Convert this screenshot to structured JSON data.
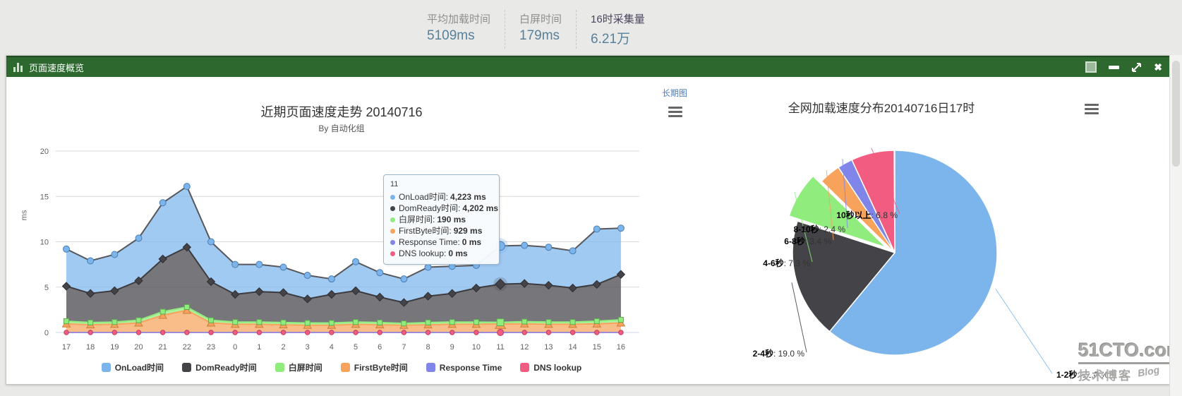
{
  "page": {
    "stats": [
      {
        "label": "平均加载时间",
        "value": "5109ms"
      },
      {
        "label": "白屏时间",
        "value": "179ms"
      },
      {
        "label": "16时采集量",
        "value": "6.21万"
      }
    ]
  },
  "panel": {
    "title": "页面速度概览"
  },
  "trend_chart": {
    "link_label": "长期图",
    "tooltip": {
      "header": "11",
      "rows": [
        {
          "name": "OnLoad时间",
          "value": "4,223 ms"
        },
        {
          "name": "DomReady时间",
          "value": "4,202 ms"
        },
        {
          "name": "白屏时间",
          "value": "190 ms"
        },
        {
          "name": "FirstByte时间",
          "value": "929 ms"
        },
        {
          "name": "Response Time",
          "value": "0 ms"
        },
        {
          "name": "DNS lookup",
          "value": "0 ms"
        }
      ]
    }
  },
  "watermark": {
    "line1": "51CTO.com",
    "line2": "技术博客",
    "line3": "Blog"
  },
  "chart_data": [
    {
      "type": "area",
      "stacked": true,
      "title": "近期页面速度走势 20140716",
      "subtitle": "By 自动化组",
      "ylabel": "ms",
      "ylim": [
        0,
        20
      ],
      "yticks": [
        0,
        5,
        10,
        15,
        20
      ],
      "grid": true,
      "legend_position": "bottom",
      "hovered_index": 18,
      "hovered_category": "11",
      "categories": [
        "17",
        "18",
        "19",
        "20",
        "21",
        "22",
        "23",
        "0",
        "1",
        "2",
        "3",
        "4",
        "5",
        "6",
        "7",
        "8",
        "9",
        "10",
        "11",
        "12",
        "13",
        "14",
        "15",
        "16"
      ],
      "series": [
        {
          "name": "OnLoad时间",
          "color": "#7cb5ec",
          "marker": "circle",
          "values": [
            4.1,
            3.6,
            4.0,
            4.7,
            6.2,
            6.7,
            4.4,
            3.3,
            3.0,
            2.8,
            2.6,
            1.7,
            3.2,
            2.7,
            2.6,
            3.2,
            3.0,
            2.5,
            4.223,
            4.2,
            4.2,
            4.1,
            6.1,
            5.1
          ]
        },
        {
          "name": "DomReady时间",
          "color": "#434348",
          "marker": "diamond",
          "values": [
            3.85,
            3.2,
            3.45,
            4.35,
            5.8,
            6.6,
            4.25,
            3.05,
            3.35,
            3.3,
            2.65,
            3.15,
            3.45,
            2.8,
            2.3,
            2.9,
            3.15,
            3.75,
            4.202,
            4.2,
            4.05,
            3.75,
            4.05,
            5.0
          ]
        },
        {
          "name": "白屏时间",
          "color": "#90ed7d",
          "marker": "square",
          "values": [
            0.3,
            0.25,
            0.25,
            0.3,
            0.4,
            0.35,
            0.3,
            0.25,
            0.25,
            0.25,
            0.25,
            0.25,
            0.25,
            0.25,
            0.2,
            0.25,
            0.25,
            0.25,
            0.19,
            0.25,
            0.25,
            0.25,
            0.3,
            0.35
          ]
        },
        {
          "name": "FirstByte时间",
          "color": "#f7a35c",
          "marker": "triangle",
          "values": [
            0.95,
            0.85,
            0.9,
            1.05,
            1.9,
            2.45,
            1.05,
            0.9,
            0.9,
            0.85,
            0.8,
            0.8,
            0.9,
            0.85,
            0.8,
            0.85,
            0.9,
            0.9,
            0.929,
            0.95,
            0.9,
            0.9,
            0.95,
            1.05
          ]
        },
        {
          "name": "Response Time",
          "color": "#8085e9",
          "marker": "triangle-down",
          "values": [
            0,
            0,
            0,
            0,
            0,
            0,
            0,
            0,
            0,
            0,
            0,
            0,
            0,
            0,
            0,
            0,
            0,
            0,
            0,
            0,
            0,
            0,
            0,
            0
          ]
        },
        {
          "name": "DNS lookup",
          "color": "#f15c80",
          "marker": "circle",
          "values": [
            0,
            0,
            0,
            0,
            0,
            0,
            0,
            0,
            0,
            0,
            0,
            0,
            0,
            0,
            0,
            0,
            0,
            0,
            0,
            0,
            0,
            0,
            0,
            0
          ]
        }
      ]
    },
    {
      "type": "pie",
      "title": "全网加载速度分布20140716日17时",
      "slices": [
        {
          "name": "1-2秒",
          "pct": 61.0,
          "color": "#7cb5ec"
        },
        {
          "name": "2-4秒",
          "pct": 19.0,
          "color": "#434348"
        },
        {
          "name": "4-6秒",
          "pct": 7.3,
          "color": "#90ed7d",
          "exploded": true
        },
        {
          "name": "6-8秒",
          "pct": 3.4,
          "color": "#f7a35c"
        },
        {
          "name": "8-10秒",
          "pct": 2.4,
          "color": "#8085e9"
        },
        {
          "name": "10秒以上",
          "pct": 6.8,
          "color": "#f15c80"
        }
      ]
    }
  ]
}
